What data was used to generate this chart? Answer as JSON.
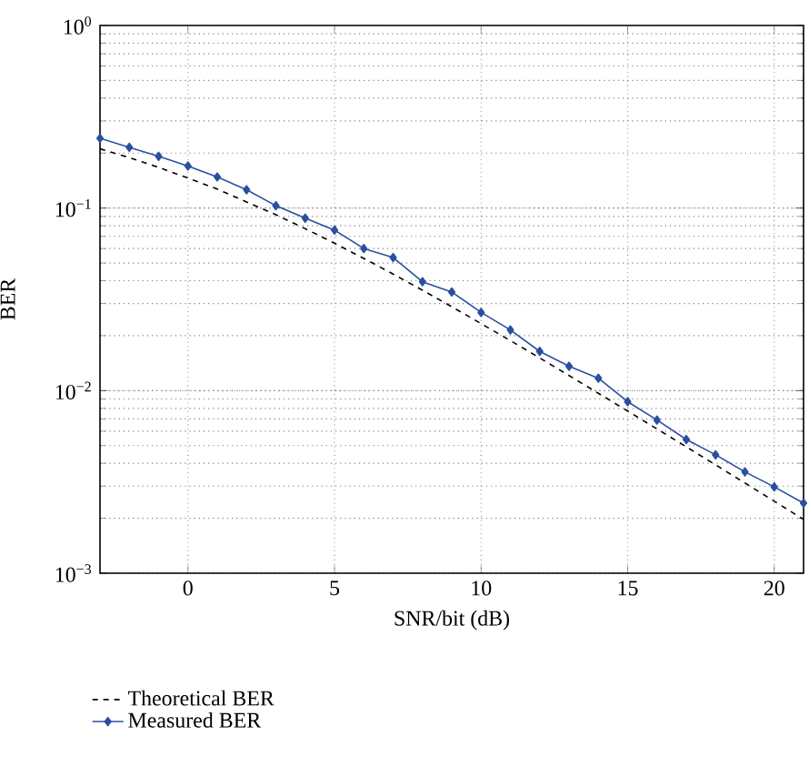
{
  "chart_data": {
    "type": "line",
    "xlabel": "SNR/bit (dB)",
    "ylabel": "BER",
    "log": "y",
    "grid": true,
    "legend": "bottom",
    "xlim": [
      -3,
      21
    ],
    "ylim": [
      0.001,
      1
    ],
    "xticks": [
      0,
      5,
      10,
      15,
      20
    ],
    "yticks": [
      {
        "value": 0.001,
        "label": "10$^{−3}$"
      },
      {
        "value": 0.01,
        "label": "10$^{−2}$"
      },
      {
        "value": 0.1,
        "label": "10$^{−1}$"
      },
      {
        "value": 1,
        "label": "10$^{0}$"
      }
    ],
    "x": [
      -3,
      -2,
      -1,
      0,
      1,
      2,
      3,
      4,
      5,
      6,
      7,
      8,
      9,
      10,
      11,
      12,
      13,
      14,
      15,
      16,
      17,
      18,
      19,
      20,
      21
    ],
    "series": [
      {
        "name": "Theoretical BER",
        "color": "#000000",
        "line_style": "dashed",
        "marker": "none",
        "values": [
          0.211,
          0.189,
          0.167,
          0.146,
          0.127,
          0.108,
          0.0919,
          0.0771,
          0.0642,
          0.053,
          0.0435,
          0.0355,
          0.0288,
          0.0233,
          0.0188,
          0.0151,
          0.0121,
          0.00967,
          0.00773,
          0.00617,
          0.00492,
          0.00392,
          0.00312,
          0.00248,
          0.00197
        ]
      },
      {
        "name": "Measured BER",
        "color": "#2a4fa0",
        "line_style": "solid",
        "marker": "diamond",
        "values": [
          0.241,
          0.215,
          0.192,
          0.17,
          0.148,
          0.126,
          0.103,
          0.088,
          0.0757,
          0.06,
          0.0536,
          0.0395,
          0.0347,
          0.0268,
          0.0215,
          0.0164,
          0.0136,
          0.0117,
          0.0087,
          0.0069,
          0.0054,
          0.00445,
          0.00359,
          0.00297,
          0.00242
        ]
      }
    ]
  }
}
